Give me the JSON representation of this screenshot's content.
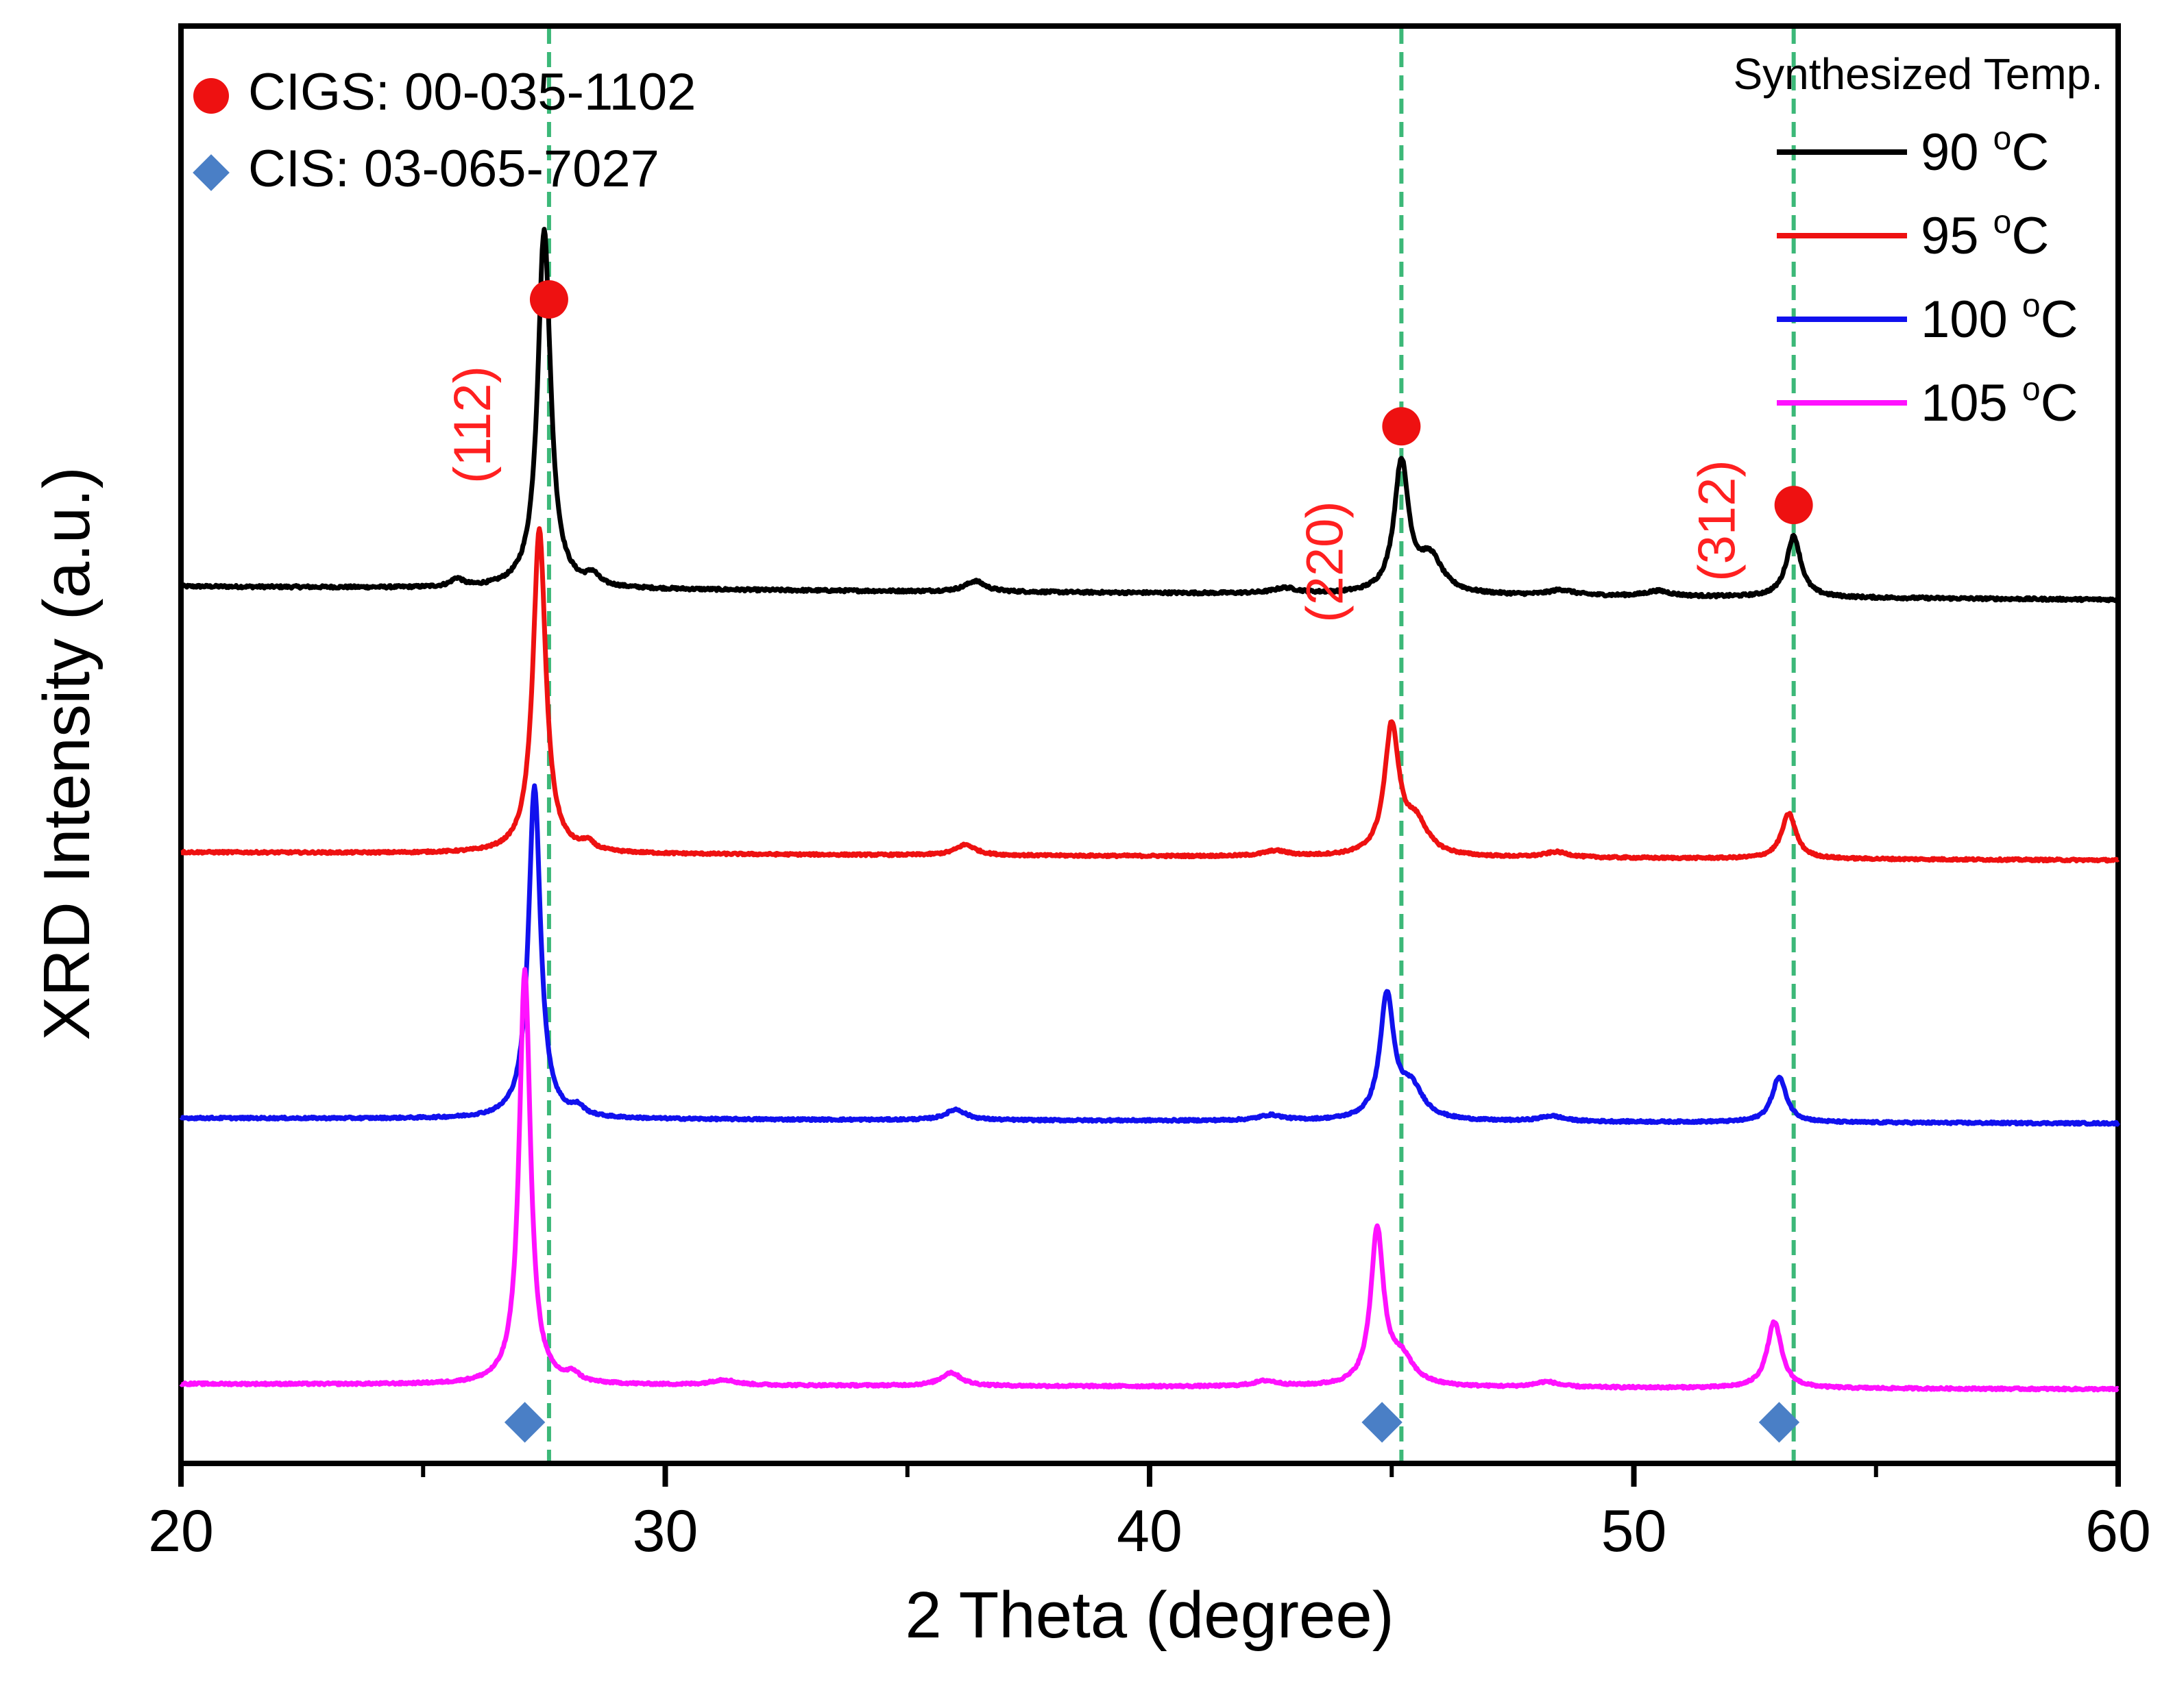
{
  "chart_data": {
    "type": "line",
    "title": "",
    "xlabel": "2 Theta (degree)",
    "ylabel": "XRD Intensity (a.u.)",
    "xlim": [
      20,
      60
    ],
    "xticks": [
      20,
      30,
      40,
      50,
      60
    ],
    "tick_labels": [
      "20",
      "30",
      "40",
      "50",
      "60"
    ],
    "y_ticks_shown": false,
    "grid": false,
    "legend": {
      "title": "Synthesized Temp.",
      "placement": "top-right",
      "unit_superscript": "o",
      "unit_letter": "C"
    },
    "reference_legend": [
      {
        "name": "CIGS: 00-035-1102",
        "marker": "circle",
        "color": "#ee1111"
      },
      {
        "name": "CIS: 03-065-7027",
        "marker": "diamond",
        "color": "#4a7fc6"
      }
    ],
    "reference_lines": {
      "positions": [
        27.6,
        45.2,
        53.3
      ],
      "color": "#3cb878",
      "style": "dashed"
    },
    "cigs_markers": [
      {
        "x": 27.6,
        "on_series": "90"
      },
      {
        "x": 45.2,
        "on_series": "90"
      },
      {
        "x": 53.3,
        "on_series": "90"
      }
    ],
    "cis_markers": [
      {
        "x": 27.1
      },
      {
        "x": 44.8
      },
      {
        "x": 53.0
      }
    ],
    "peak_labels": [
      {
        "text": "(112)",
        "x": 27.6,
        "color": "#ff2020"
      },
      {
        "text": "(220)",
        "x": 45.2,
        "color": "#ff2020"
      },
      {
        "text": "(312)",
        "x": 53.3,
        "color": "#ff2020"
      }
    ],
    "series": [
      {
        "name": "90",
        "label": "90 °C",
        "color": "#000000",
        "baseline": 1.0,
        "tilt": -0.05,
        "noise": 0.01,
        "peaks": [
          [
            27.5,
            1.35,
            0.16
          ],
          [
            45.2,
            0.49,
            0.18
          ],
          [
            45.8,
            0.13,
            0.3
          ],
          [
            53.3,
            0.23,
            0.18
          ],
          [
            28.5,
            0.04,
            0.15
          ],
          [
            25.7,
            0.03,
            0.15
          ],
          [
            36.4,
            0.04,
            0.25
          ],
          [
            42.8,
            0.02,
            0.3
          ],
          [
            48.5,
            0.02,
            0.3
          ],
          [
            50.5,
            0.02,
            0.3
          ]
        ]
      },
      {
        "name": "95",
        "label": "95 °C",
        "color": "#ee1111",
        "baseline": 0.0,
        "tilt": -0.03,
        "noise": 0.008,
        "peaks": [
          [
            27.4,
            1.22,
            0.16
          ],
          [
            45.0,
            0.48,
            0.18
          ],
          [
            45.5,
            0.12,
            0.3
          ],
          [
            53.2,
            0.17,
            0.18
          ],
          [
            28.4,
            0.03,
            0.15
          ],
          [
            36.2,
            0.04,
            0.25
          ],
          [
            42.6,
            0.02,
            0.3
          ],
          [
            48.4,
            0.02,
            0.3
          ]
        ]
      },
      {
        "name": "100",
        "label": "100 °C",
        "color": "#1111ee",
        "baseline": -1.0,
        "tilt": -0.02,
        "noise": 0.008,
        "peaks": [
          [
            27.3,
            1.25,
            0.15
          ],
          [
            44.9,
            0.46,
            0.17
          ],
          [
            45.4,
            0.12,
            0.3
          ],
          [
            53.0,
            0.17,
            0.18
          ],
          [
            28.2,
            0.03,
            0.15
          ],
          [
            36.0,
            0.04,
            0.25
          ],
          [
            42.5,
            0.02,
            0.3
          ],
          [
            48.3,
            0.02,
            0.3
          ]
        ]
      },
      {
        "name": "105",
        "label": "105 °C",
        "color": "#ff11ff",
        "baseline": -2.0,
        "tilt": -0.02,
        "noise": 0.008,
        "peaks": [
          [
            27.1,
            1.56,
            0.14
          ],
          [
            44.7,
            0.58,
            0.16
          ],
          [
            45.2,
            0.1,
            0.3
          ],
          [
            52.9,
            0.25,
            0.18
          ],
          [
            28.1,
            0.03,
            0.15
          ],
          [
            35.9,
            0.05,
            0.25
          ],
          [
            31.2,
            0.02,
            0.3
          ],
          [
            42.4,
            0.02,
            0.3
          ],
          [
            48.2,
            0.02,
            0.3
          ]
        ]
      }
    ]
  }
}
